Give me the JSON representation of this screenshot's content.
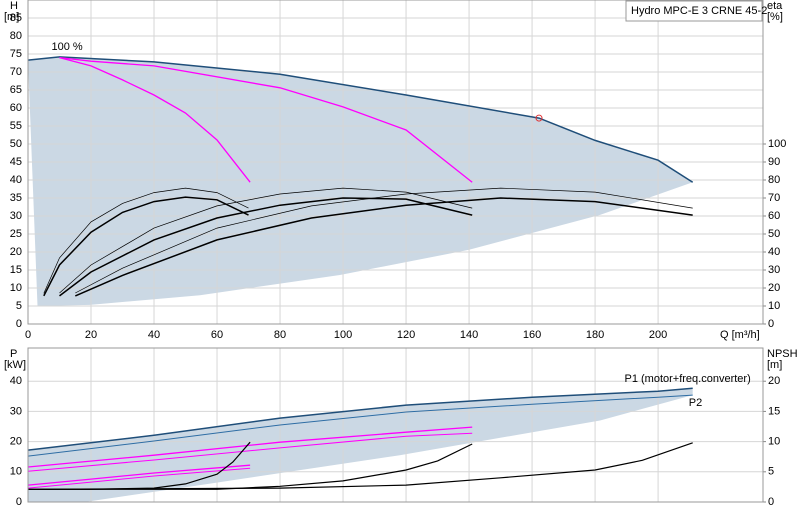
{
  "chart_data": [
    {
      "type": "line",
      "ylabel": "H",
      "yunit": "[m]",
      "y2label": "eta",
      "y2unit": "[%]",
      "xlabel": "Q [m³/h]",
      "title": "Hydro MPC-E 3 CRNE 45-2",
      "xlim": [
        0,
        233.3
      ],
      "ylim": [
        0,
        90
      ],
      "y2lim": [
        0,
        180
      ],
      "xticks": [
        0,
        20,
        40,
        60,
        80,
        100,
        120,
        140,
        160,
        180,
        200
      ],
      "yticks": [
        0,
        5,
        10,
        15,
        20,
        25,
        30,
        35,
        40,
        45,
        50,
        55,
        60,
        65,
        70,
        75,
        80,
        85
      ],
      "y2ticks": [
        0,
        10,
        20,
        30,
        40,
        50,
        60,
        70,
        80,
        90,
        100
      ],
      "grid": true,
      "show_xtick_labels": true,
      "series": [
        {
          "kind": "area",
          "color": "#cbd8e4",
          "x": [
            0,
            10,
            40,
            80,
            120,
            162.2,
            180,
            200,
            211,
            181.6,
            140,
            99,
            54.6,
            19.7,
            3
          ],
          "values": [
            73.3,
            74.2,
            72.8,
            69.4,
            63.6,
            57.2,
            51,
            45.5,
            39.4,
            30.3,
            20.6,
            13.6,
            8,
            5.3,
            5
          ]
        },
        {
          "kind": "line",
          "color": "#1f4e79",
          "width": 1.5,
          "label": "100 %",
          "x": [
            0,
            10,
            40,
            80,
            120,
            162.2,
            180,
            200,
            211
          ],
          "values": [
            73.3,
            74.2,
            72.8,
            69.4,
            63.6,
            57.2,
            51,
            45.5,
            39.4
          ]
        },
        {
          "kind": "line",
          "color": "#ff00ff",
          "width": 1.3,
          "x": [
            10,
            20,
            40,
            80,
            100,
            120,
            141
          ],
          "values": [
            74,
            73,
            71.7,
            65.6,
            60.3,
            53.9,
            39.4
          ]
        },
        {
          "kind": "line",
          "color": "#ff00ff",
          "width": 1.3,
          "x": [
            10,
            20,
            30,
            40,
            50,
            60,
            70.5
          ],
          "values": [
            74,
            71.7,
            67.8,
            63.6,
            58.6,
            51.1,
            39.4
          ]
        },
        {
          "kind": "line",
          "color": "#000000",
          "width": 0.7,
          "axis": "y2",
          "x": [
            5,
            10,
            20,
            30,
            40,
            50,
            60,
            70
          ],
          "values": [
            17,
            36.7,
            56.7,
            67,
            73,
            75.5,
            73,
            64.4
          ]
        },
        {
          "kind": "line",
          "color": "#000000",
          "width": 1.5,
          "axis": "y2",
          "x": [
            5,
            10,
            20,
            30,
            40,
            50,
            60,
            70
          ],
          "values": [
            15.6,
            32.8,
            51,
            62,
            68,
            70.5,
            69,
            60.5
          ]
        },
        {
          "kind": "line",
          "color": "#000000",
          "width": 0.7,
          "axis": "y2",
          "x": [
            10,
            20,
            40,
            60,
            80,
            100,
            120,
            141
          ],
          "values": [
            17.2,
            32.8,
            53.3,
            65.6,
            72.2,
            75.5,
            73.3,
            64.4
          ]
        },
        {
          "kind": "line",
          "color": "#000000",
          "width": 1.5,
          "axis": "y2",
          "x": [
            10,
            20,
            40,
            60,
            80,
            100,
            120,
            141
          ],
          "values": [
            15.6,
            28.9,
            46.7,
            58.9,
            66,
            70,
            69.4,
            60.5
          ]
        },
        {
          "kind": "line",
          "color": "#000000",
          "width": 0.7,
          "axis": "y2",
          "x": [
            15,
            30,
            60,
            90,
            120,
            150,
            180,
            211
          ],
          "values": [
            17.2,
            31,
            53.3,
            65.6,
            72.2,
            75.5,
            73.3,
            64.4
          ]
        },
        {
          "kind": "line",
          "color": "#000000",
          "width": 1.5,
          "axis": "y2",
          "x": [
            15,
            30,
            60,
            90,
            120,
            150,
            180,
            211
          ],
          "values": [
            15.6,
            27,
            46.7,
            58.9,
            66,
            70,
            68,
            60.5
          ]
        },
        {
          "kind": "point",
          "color": "#e03030",
          "x": [
            162.2
          ],
          "values": [
            57.2
          ]
        }
      ]
    },
    {
      "type": "line",
      "ylabel": "P",
      "yunit": "[kW]",
      "y2label": "NPSH",
      "y2unit": "[m]",
      "xlim": [
        0,
        233.3
      ],
      "ylim": [
        0,
        51
      ],
      "y2lim": [
        0,
        25.5
      ],
      "xticks": [
        0,
        20,
        40,
        60,
        80,
        100,
        120,
        140,
        160,
        180,
        200
      ],
      "yticks": [
        0,
        10,
        20,
        30,
        40
      ],
      "y2ticks": [
        0,
        5,
        10,
        15,
        20
      ],
      "grid": true,
      "show_xtick_labels": false,
      "series": [
        {
          "kind": "area",
          "color": "#cbd8e4",
          "x": [
            0,
            40,
            80,
            120,
            160,
            200,
            211,
            211,
            181.6,
            118,
            54.6,
            18,
            0
          ],
          "values": [
            17.2,
            22.1,
            27.8,
            32.1,
            34.7,
            36.7,
            37.7,
            35.4,
            27,
            15.5,
            5.6,
            0,
            0
          ]
        },
        {
          "kind": "line",
          "color": "#1f4e79",
          "width": 1.5,
          "label": "P1 (motor+freq.converter)",
          "x": [
            0,
            40,
            80,
            120,
            160,
            200,
            211
          ],
          "values": [
            17.2,
            22.1,
            27.8,
            32.1,
            34.7,
            36.7,
            37.7
          ]
        },
        {
          "kind": "line",
          "color": "#2e6da4",
          "width": 1,
          "label": "P2",
          "x": [
            0,
            40,
            80,
            120,
            160,
            200,
            211
          ],
          "values": [
            15.2,
            20.2,
            25.5,
            29.8,
            32.4,
            34.7,
            35.4
          ]
        },
        {
          "kind": "line",
          "color": "#ff00ff",
          "width": 1.3,
          "x": [
            0,
            40,
            80,
            120,
            141
          ],
          "values": [
            11.6,
            15.5,
            19.8,
            23.1,
            24.8
          ]
        },
        {
          "kind": "line",
          "color": "#ff00ff",
          "width": 1,
          "x": [
            0,
            40,
            80,
            120,
            141
          ],
          "values": [
            10.2,
            13.9,
            17.9,
            21.8,
            22.8
          ]
        },
        {
          "kind": "line",
          "color": "#ff00ff",
          "width": 1.3,
          "x": [
            0,
            20,
            40,
            70.5
          ],
          "values": [
            5.6,
            7.6,
            9.6,
            12.2
          ]
        },
        {
          "kind": "line",
          "color": "#ff00ff",
          "width": 1,
          "x": [
            0,
            20,
            40,
            70.5
          ],
          "values": [
            4.6,
            6.6,
            8.6,
            11.2
          ]
        },
        {
          "kind": "line",
          "color": "#000000",
          "width": 1.2,
          "axis": "y2",
          "x": [
            0,
            20,
            40,
            50,
            60,
            65,
            70.5
          ],
          "values": [
            2.1,
            2.1,
            2.3,
            3,
            4.6,
            6.6,
            9.9
          ]
        },
        {
          "kind": "line",
          "color": "#000000",
          "width": 1.2,
          "axis": "y2",
          "x": [
            0,
            60,
            80,
            100,
            120,
            130,
            141
          ],
          "values": [
            2.1,
            2.1,
            2.6,
            3.5,
            5.3,
            6.8,
            9.6
          ]
        },
        {
          "kind": "line",
          "color": "#000000",
          "width": 1.2,
          "axis": "y2",
          "x": [
            0,
            80,
            120,
            150,
            180,
            195,
            211
          ],
          "values": [
            2.1,
            2.3,
            2.8,
            4,
            5.3,
            6.9,
            9.8
          ]
        }
      ]
    }
  ]
}
